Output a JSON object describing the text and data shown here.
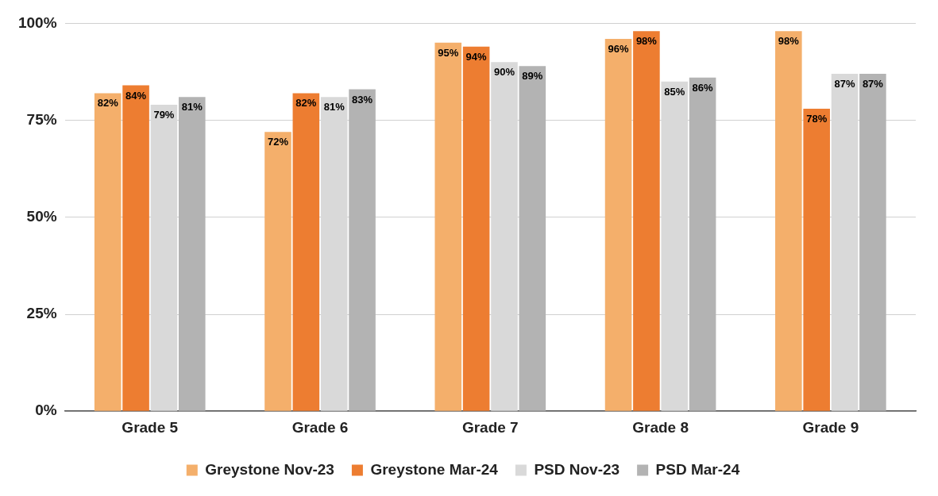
{
  "chart_data": {
    "type": "bar",
    "categories": [
      "Grade 5",
      "Grade 6",
      "Grade 7",
      "Grade 8",
      "Grade 9"
    ],
    "series": [
      {
        "name": "Greystone Nov-23",
        "color": "#f4af6b",
        "values": [
          82,
          72,
          95,
          96,
          98
        ],
        "value_labels": [
          "82%",
          "72%",
          "95%",
          "96%",
          "98%"
        ]
      },
      {
        "name": "Greystone Mar-24",
        "color": "#ed7d31",
        "values": [
          84,
          82,
          94,
          98,
          78
        ],
        "value_labels": [
          "84%",
          "82%",
          "94%",
          "98%",
          "78%"
        ]
      },
      {
        "name": "PSD Nov-23",
        "color": "#d9d9d9",
        "values": [
          79,
          81,
          90,
          85,
          87
        ],
        "value_labels": [
          "79%",
          "81%",
          "90%",
          "85%",
          "87%"
        ]
      },
      {
        "name": "PSD Mar-24",
        "color": "#b3b3b3",
        "values": [
          81,
          83,
          89,
          86,
          87
        ],
        "value_labels": [
          "81%",
          "83%",
          "89%",
          "86%",
          "87%"
        ]
      }
    ],
    "ylim": [
      0,
      100
    ],
    "yticks": [
      {
        "value": 0,
        "label": "0%"
      },
      {
        "value": 25,
        "label": "25%"
      },
      {
        "value": 50,
        "label": "50%"
      },
      {
        "value": 75,
        "label": "75%"
      },
      {
        "value": 100,
        "label": "100%"
      }
    ],
    "grid": "y",
    "legend": "bottom"
  }
}
